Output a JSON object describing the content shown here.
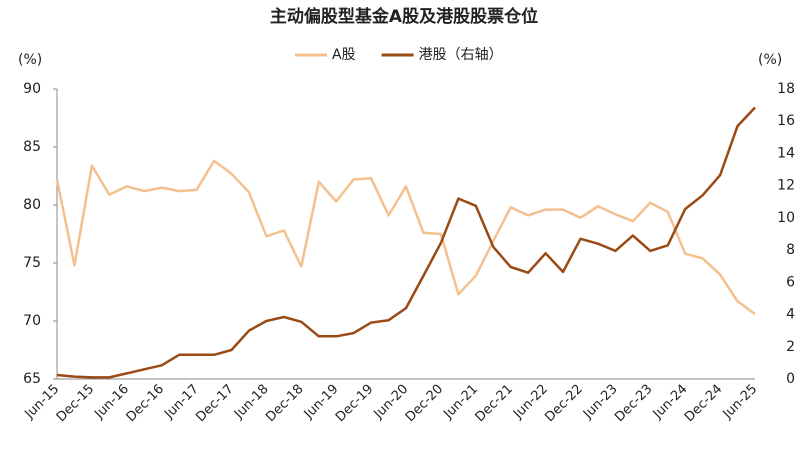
{
  "chart_data": {
    "type": "line",
    "title": "主动偏股型基金A股及港股股票仓位",
    "y_unit_label": "(%)",
    "y2_unit_label": "(%)",
    "categories": [
      "Jun-15",
      null,
      "Dec-15",
      null,
      "Jun-16",
      null,
      "Dec-16",
      null,
      "Jun-17",
      null,
      "Dec-17",
      null,
      "Jun-18",
      null,
      "Dec-18",
      null,
      "Jun-19",
      null,
      "Dec-19",
      null,
      "Jun-20",
      null,
      "Dec-20",
      null,
      "Jun-21",
      null,
      "Dec-21",
      null,
      "Jun-22",
      null,
      "Dec-22",
      null,
      "Jun-23",
      null,
      "Dec-23",
      null,
      "Jun-24",
      null,
      "Dec-24",
      null,
      "Jun-25"
    ],
    "series": [
      {
        "name": "A股",
        "color": "#f4c08e",
        "values": [
          82.2,
          74.8,
          83.4,
          80.9,
          81.6,
          81.2,
          81.5,
          81.2,
          81.3,
          83.8,
          82.7,
          81.1,
          77.3,
          77.8,
          74.7,
          82.0,
          80.3,
          82.2,
          82.3,
          79.1,
          81.6,
          77.6,
          77.5,
          72.3,
          73.9,
          76.9,
          79.8,
          79.1,
          79.6,
          79.6,
          78.9,
          79.9,
          79.2,
          78.6,
          80.2,
          79.4,
          75.8,
          75.4,
          74.0,
          71.7,
          70.6
        ]
      },
      {
        "name": "港股（右轴）",
        "color": "#9a4a14",
        "axis": "y2",
        "values": [
          0.25,
          0.15,
          0.1,
          0.1,
          0.35,
          0.6,
          0.85,
          1.5,
          1.5,
          1.5,
          1.8,
          3.0,
          3.6,
          3.85,
          3.55,
          2.65,
          2.65,
          2.85,
          3.5,
          3.65,
          4.4,
          6.4,
          8.45,
          11.2,
          10.75,
          8.2,
          6.95,
          6.6,
          7.8,
          6.65,
          8.7,
          8.4,
          7.95,
          8.9,
          7.95,
          8.3,
          10.55,
          11.4,
          12.65,
          15.7,
          16.85
        ]
      }
    ],
    "ylim": [
      65,
      90
    ],
    "yticks": [
      65,
      70,
      75,
      80,
      85,
      90
    ],
    "y2lim": [
      0,
      18
    ],
    "y2ticks": [
      0,
      2,
      4,
      6,
      8,
      10,
      12,
      14,
      16,
      18
    ],
    "grid": false
  }
}
